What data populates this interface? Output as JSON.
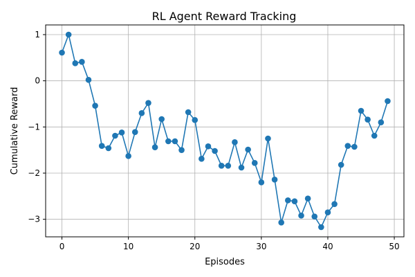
{
  "chart_data": {
    "type": "line",
    "title": "RL Agent Reward Tracking",
    "xlabel": "Episodes",
    "ylabel": "Cumulative Reward",
    "xlim": [
      -2.45,
      51.45
    ],
    "ylim": [
      -3.38,
      1.21
    ],
    "xticks": [
      0,
      10,
      20,
      30,
      40,
      50
    ],
    "yticks": [
      1,
      0,
      -1,
      -2,
      -3
    ],
    "xtick_labels": [
      "0",
      "10",
      "20",
      "30",
      "40",
      "50"
    ],
    "ytick_labels": [
      "1",
      "0",
      "−1",
      "−2",
      "−3"
    ],
    "grid": true,
    "marker": "circle",
    "color": "#1f77b4",
    "series": [
      {
        "x": [
          0,
          1,
          2,
          3,
          4,
          5,
          6,
          7,
          8,
          9,
          10,
          11,
          12,
          13,
          14,
          15,
          16,
          17,
          18,
          19,
          20,
          21,
          22,
          23,
          24,
          25,
          26,
          27,
          28,
          29,
          30,
          31,
          32,
          33,
          34,
          35,
          36,
          37,
          38,
          39,
          40,
          41,
          42,
          43,
          44,
          45,
          46,
          47,
          48,
          49
        ],
        "values": [
          0.61,
          1.0,
          0.38,
          0.41,
          0.02,
          -0.54,
          -1.41,
          -1.46,
          -1.19,
          -1.12,
          -1.63,
          -1.11,
          -0.7,
          -0.48,
          -1.44,
          -0.83,
          -1.31,
          -1.31,
          -1.5,
          -0.68,
          -0.85,
          -1.69,
          -1.42,
          -1.52,
          -1.84,
          -1.84,
          -1.33,
          -1.88,
          -1.49,
          -1.78,
          -2.2,
          -1.25,
          -2.14,
          -3.07,
          -2.59,
          -2.61,
          -2.92,
          -2.55,
          -2.94,
          -3.17,
          -2.85,
          -2.67,
          -1.82,
          -1.41,
          -1.43,
          -0.65,
          -0.84,
          -1.19,
          -0.9,
          -0.44
        ]
      }
    ]
  }
}
